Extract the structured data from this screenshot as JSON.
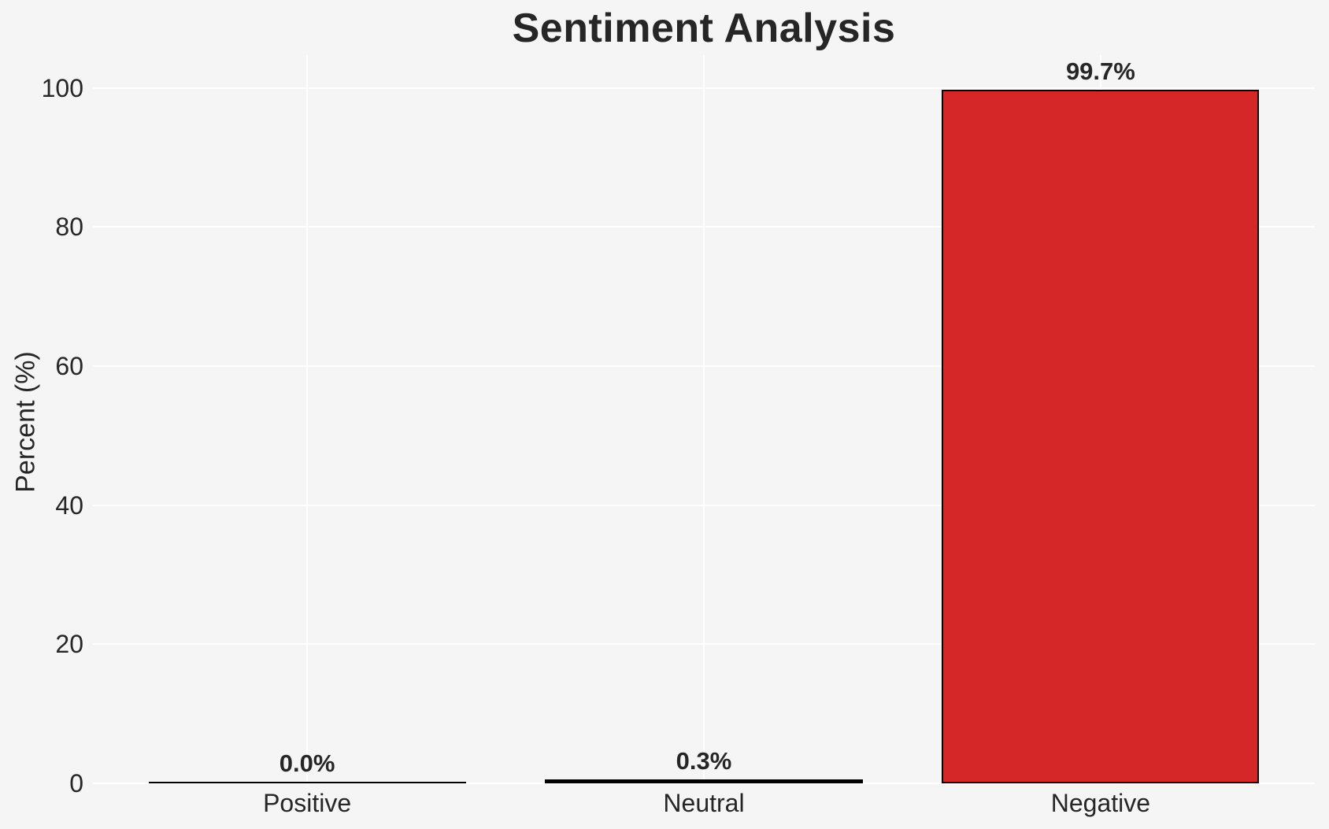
{
  "chart_data": {
    "type": "bar",
    "title": "Sentiment Analysis",
    "xlabel": "",
    "ylabel": "Percent (%)",
    "categories": [
      "Positive",
      "Neutral",
      "Negative"
    ],
    "values": [
      0.0,
      0.3,
      99.7
    ],
    "value_labels": [
      "0.0%",
      "0.3%",
      "99.7%"
    ],
    "yticks": [
      0,
      20,
      40,
      60,
      80,
      100
    ],
    "ylim": [
      0,
      104.7
    ],
    "grid": true,
    "legend": false,
    "colors": {
      "negative_bar_fill": "#d62728",
      "bar_edge": "#000000",
      "tiny_bar_fill": "#000000",
      "gridline": "#ffffff",
      "background": "#f5f5f6",
      "text": "#262626"
    },
    "bar_fills": [
      "#000000",
      "#000000",
      "#d62728"
    ]
  }
}
